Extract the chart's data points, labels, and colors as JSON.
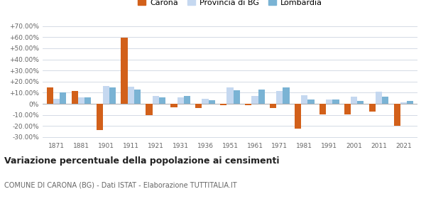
{
  "years": [
    1871,
    1881,
    1901,
    1911,
    1921,
    1931,
    1936,
    1951,
    1961,
    1971,
    1981,
    1991,
    2001,
    2011,
    2021
  ],
  "carona": [
    14.5,
    11.5,
    -23.5,
    59.5,
    -10.0,
    -3.5,
    -4.0,
    -1.5,
    -1.5,
    -4.0,
    -22.5,
    -9.5,
    -9.5,
    -7.0,
    -20.0
  ],
  "provincia_bg": [
    4.5,
    5.5,
    16.0,
    15.5,
    7.0,
    5.5,
    4.5,
    14.5,
    7.0,
    11.5,
    7.5,
    4.0,
    6.5,
    11.0,
    1.5
  ],
  "lombardia": [
    10.5,
    5.5,
    15.0,
    13.0,
    6.0,
    7.0,
    3.5,
    12.0,
    13.0,
    15.0,
    4.0,
    4.0,
    2.5,
    6.5,
    2.5
  ],
  "carona_color": "#d2601a",
  "provincia_color": "#c5d8f0",
  "lombardia_color": "#7ab3d4",
  "title": "Variazione percentuale della popolazione ai censimenti",
  "subtitle": "COMUNE DI CARONA (BG) - Dati ISTAT - Elaborazione TUTTITALIA.IT",
  "ylim": [
    -32,
    72
  ],
  "yticks": [
    -30,
    -20,
    -10,
    0,
    10,
    20,
    30,
    40,
    50,
    60,
    70
  ],
  "background_color": "#ffffff",
  "grid_color": "#cdd5e0"
}
